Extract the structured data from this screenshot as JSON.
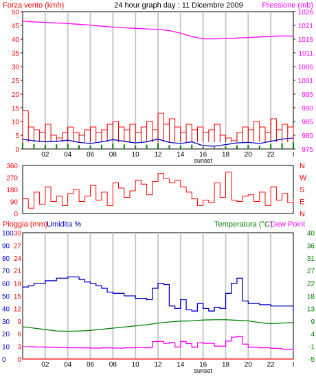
{
  "header": {
    "left_label": "Forza vento (kmh)",
    "title": "24 hour graph day : 11 Dicembre 2009",
    "right_label": "Pressione (mb)"
  },
  "colors": {
    "background": "#ffffff",
    "grid": "#c8c8c8",
    "frame": "#000000",
    "wind": "#ff0000",
    "wind_gust": "#cc0000",
    "wind_avg": "#0000bb",
    "wind_bars": "#008000",
    "pressure": "#ff00ff",
    "direction": "#ff0000",
    "rain": "#ff0000",
    "humidity": "#0000cc",
    "temperature": "#008000",
    "dew_point": "#ff00ff",
    "right_axis_temp": "#008000"
  },
  "x_axis": {
    "tick_labels": [
      "02",
      "04",
      "06",
      "08",
      "10",
      "12",
      "14",
      "16",
      "18",
      "20",
      "22",
      "I"
    ],
    "sun_labels": [
      "sunset",
      "sunset"
    ]
  },
  "chart_data": [
    {
      "type": "line",
      "title": "24 hour graph day : 11 Dicembre 2009",
      "ylabel_left": "Forza vento (kmh)",
      "ylabel_right": "Pressione (mb)",
      "ylim_left": [
        0,
        50
      ],
      "ylim_right": [
        975,
        1026
      ],
      "y_ticks_left": [
        "0",
        "5",
        "10",
        "15",
        "20",
        "25",
        "30",
        "35",
        "40",
        "45",
        "50"
      ],
      "y_ticks_right": [
        "975",
        "980",
        "985",
        "990",
        "995",
        "1001",
        "1006",
        "1011",
        "1016",
        "1021",
        "1026"
      ],
      "x_range": [
        0,
        24
      ],
      "grid": true,
      "series": [
        {
          "name": "Pressione (mb)",
          "x": [
            0,
            1,
            2,
            3,
            4,
            5,
            6,
            7,
            8,
            9,
            10,
            11,
            12,
            13,
            14,
            15,
            16,
            17,
            18,
            19,
            20,
            21,
            22,
            23,
            24
          ],
          "y": [
            1022.5,
            1022.2,
            1022.0,
            1021.8,
            1021.6,
            1021.3,
            1021.0,
            1020.6,
            1020.3,
            1020.0,
            1019.8,
            1019.6,
            1019.4,
            1019.0,
            1018.0,
            1016.8,
            1015.9,
            1015.9,
            1016.0,
            1016.2,
            1016.4,
            1016.6,
            1016.8,
            1017.0,
            1016.9
          ]
        },
        {
          "name": "Wind gust",
          "x": [
            0,
            0.5,
            1,
            1.5,
            2,
            2.5,
            3,
            3.5,
            4,
            4.5,
            5,
            5.5,
            6,
            6.5,
            7,
            7.5,
            8,
            8.5,
            9,
            9.5,
            10,
            10.5,
            11,
            11.5,
            12,
            12.5,
            13,
            13.5,
            14,
            14.5,
            15,
            15.5,
            16,
            16.5,
            17,
            17.5,
            18,
            18.5,
            19,
            19.5,
            20,
            20.5,
            21,
            21.5,
            22,
            22.5,
            23,
            23.5,
            24
          ],
          "y": [
            14,
            8,
            7,
            6,
            9,
            5,
            4,
            6,
            8,
            6,
            5,
            7,
            8,
            6,
            7,
            9,
            10,
            8,
            7,
            9,
            6,
            8,
            10,
            7,
            13,
            9,
            11,
            8,
            6,
            9,
            7,
            8,
            6,
            7,
            9,
            5,
            4,
            3,
            6,
            8,
            7,
            10,
            8,
            6,
            11,
            7,
            9,
            8,
            7
          ]
        },
        {
          "name": "Wind avg",
          "x": [
            0,
            1,
            2,
            3,
            4,
            5,
            6,
            7,
            8,
            9,
            10,
            11,
            12,
            13,
            14,
            15,
            16,
            17,
            18,
            19,
            20,
            21,
            22,
            23,
            24
          ],
          "y": [
            3.5,
            3.0,
            2.6,
            2.8,
            3.2,
            2.4,
            2.0,
            2.6,
            3.4,
            2.8,
            2.2,
            2.6,
            3.6,
            2.4,
            2.0,
            2.6,
            1.2,
            1.0,
            1.6,
            2.2,
            2.4,
            2.0,
            2.8,
            3.6,
            4.0
          ]
        }
      ]
    },
    {
      "type": "line",
      "ylabel_right_letters": [
        "N",
        "W",
        "S",
        "E",
        "N"
      ],
      "ylim": [
        0,
        360
      ],
      "y_ticks": [
        "0",
        "90",
        "180",
        "270",
        "360"
      ],
      "x_range": [
        0,
        24
      ],
      "series": [
        {
          "name": "Wind direction",
          "x": [
            0,
            0.5,
            1,
            1.5,
            2,
            2.5,
            3,
            3.5,
            4,
            4.5,
            5,
            5.5,
            6,
            6.5,
            7,
            7.5,
            8,
            8.5,
            9,
            9.5,
            10,
            10.5,
            11,
            11.5,
            12,
            12.5,
            13,
            13.5,
            14,
            14.5,
            15,
            15.5,
            16,
            16.5,
            17,
            17.5,
            18,
            18.5,
            19,
            19.5,
            20,
            20.5,
            21,
            21.5,
            22,
            22.5,
            23,
            23.5,
            24
          ],
          "y": [
            110,
            40,
            160,
            70,
            200,
            90,
            130,
            60,
            150,
            180,
            90,
            130,
            210,
            100,
            160,
            60,
            230,
            190,
            120,
            170,
            250,
            220,
            140,
            240,
            300,
            260,
            230,
            250,
            200,
            160,
            110,
            60,
            100,
            80,
            230,
            120,
            310,
            100,
            90,
            130,
            140,
            90,
            160,
            60,
            200,
            100,
            150,
            80,
            110
          ]
        }
      ]
    },
    {
      "type": "line",
      "ylabel_left": "Pioggia (mm)",
      "ylabel_left2": "Umidita %",
      "ylabel_right": "Temperatura (°C)",
      "ylabel_right2": "Dew Point",
      "ylim_humidity": [
        0,
        100
      ],
      "ylim_rain": [
        0,
        30
      ],
      "ylim_temp": [
        -5,
        40
      ],
      "y_ticks_humidity": [
        "0",
        "10",
        "20",
        "30",
        "40",
        "50",
        "60",
        "70",
        "80",
        "90",
        "100"
      ],
      "y_ticks_rain": [
        "0",
        "3",
        "6",
        "9",
        "12",
        "15",
        "18",
        "21",
        "24",
        "27",
        "30"
      ],
      "y_ticks_temp": [
        "-5",
        "-1",
        "4",
        "9",
        "13",
        "18",
        "22",
        "27",
        "31",
        "36",
        "40"
      ],
      "x_range": [
        0,
        24
      ],
      "grid": true,
      "series": [
        {
          "name": "Umidita %",
          "x": [
            0,
            0.5,
            1,
            2,
            3,
            4,
            5,
            5.5,
            6,
            6.5,
            7,
            7.5,
            8,
            9,
            10,
            11,
            11.5,
            12,
            12.5,
            13,
            13.5,
            14,
            14.5,
            15,
            15.5,
            16,
            16.5,
            17,
            17.5,
            18,
            18.5,
            19,
            19.5,
            20,
            21,
            22,
            23,
            24
          ],
          "y": [
            57,
            58,
            60,
            62,
            64,
            65,
            63,
            61,
            60,
            58,
            56,
            53,
            52,
            50,
            48,
            47,
            56,
            60,
            59,
            42,
            40,
            47,
            39,
            38,
            44,
            40,
            38,
            41,
            40,
            52,
            60,
            64,
            46,
            44,
            43,
            42,
            42,
            38
          ]
        },
        {
          "name": "Temperatura (°C)",
          "x": [
            0,
            1,
            2,
            3,
            4,
            5,
            6,
            7,
            8,
            9,
            10,
            11,
            12,
            13,
            14,
            15,
            16,
            17,
            18,
            19,
            20,
            21,
            22,
            23,
            24
          ],
          "y": [
            6.5,
            6.0,
            5.5,
            5.0,
            4.9,
            5.0,
            5.2,
            5.6,
            6.0,
            6.4,
            6.8,
            7.2,
            7.8,
            8.2,
            8.5,
            8.6,
            8.9,
            9.0,
            9.0,
            8.8,
            8.6,
            8.0,
            7.6,
            7.8,
            8.0
          ]
        },
        {
          "name": "Dew Point",
          "x": [
            0,
            1,
            2,
            3,
            4,
            5,
            6,
            7,
            8,
            9,
            10,
            11,
            11.5,
            12,
            12.5,
            13,
            13.5,
            14,
            14.5,
            15,
            15.5,
            16,
            17,
            18,
            18.5,
            19,
            19.5,
            20,
            21,
            22,
            23,
            24
          ],
          "y": [
            -0.6,
            -0.7,
            -0.8,
            -0.9,
            -1.0,
            -1.0,
            -1.1,
            -1.0,
            -1.1,
            -1.0,
            -0.9,
            -1.0,
            1.2,
            1.3,
            0.6,
            0.9,
            -0.7,
            1.3,
            0.5,
            -0.8,
            0.8,
            0.6,
            -0.4,
            1.4,
            2.8,
            3.0,
            0.3,
            -0.8,
            -1.0,
            -1.2,
            -1.5,
            -2.2
          ]
        },
        {
          "name": "Pioggia (mm)",
          "x": [
            0,
            24
          ],
          "y": [
            0,
            0
          ]
        }
      ]
    }
  ]
}
